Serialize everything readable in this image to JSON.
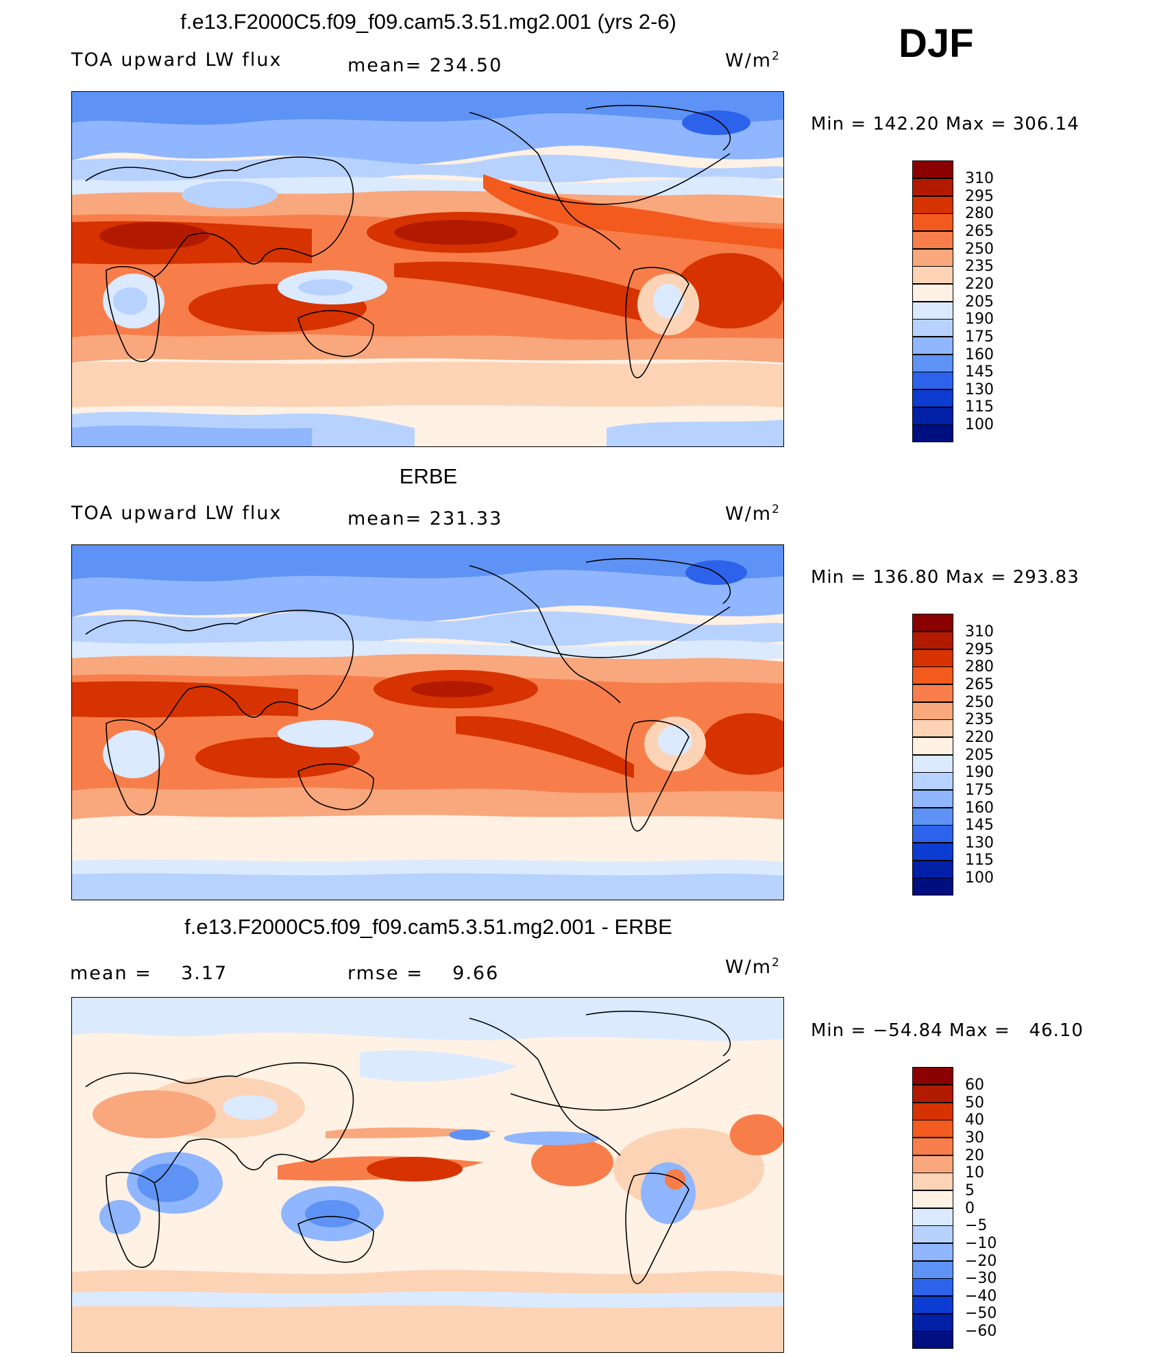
{
  "season": "DJF",
  "units_text": "W/m",
  "units_sup": "2",
  "panels": [
    {
      "title": "f.e13.F2000C5.f09_f09.cam5.3.51.mg2.001 (yrs 2-6)",
      "left_label": "TOA upward LW flux",
      "stat_label": "mean= 234.50",
      "minmax": "Min = 142.20 Max = 306.14"
    },
    {
      "title": "ERBE",
      "left_label": "TOA upward LW flux",
      "stat_label": "mean= 231.33",
      "minmax": "Min = 136.80 Max = 293.83"
    },
    {
      "title": "f.e13.F2000C5.f09_f09.cam5.3.51.mg2.001 - ERBE",
      "left_label": "mean =    3.17",
      "stat_label": "rmse =    9.66",
      "minmax": "Min = −54.84 Max =   46.10"
    }
  ],
  "chart_data": [
    {
      "type": "heatmap",
      "title": "f.e13.F2000C5.f09_f09.cam5.3.51.mg2.001 (yrs 2-6)",
      "subtitle": "TOA upward LW flux",
      "units": "W/m2",
      "mean": 234.5,
      "min": 142.2,
      "max": 306.14,
      "colorbar_levels": [
        310,
        295,
        280,
        265,
        250,
        235,
        220,
        205,
        190,
        175,
        160,
        145,
        130,
        115,
        100
      ],
      "colors": [
        "#8b0000",
        "#b21a00",
        "#d63300",
        "#f25a1e",
        "#f77e4a",
        "#f9a77d",
        "#fdd3b6",
        "#fff1e4",
        "#dbeaff",
        "#b8d2ff",
        "#8fb6ff",
        "#5e93f5",
        "#2d63ea",
        "#0c3cd1",
        "#0020a8",
        "#000f80"
      ]
    },
    {
      "type": "heatmap",
      "title": "ERBE",
      "subtitle": "TOA upward LW flux",
      "units": "W/m2",
      "mean": 231.33,
      "min": 136.8,
      "max": 293.83,
      "colorbar_levels": [
        310,
        295,
        280,
        265,
        250,
        235,
        220,
        205,
        190,
        175,
        160,
        145,
        130,
        115,
        100
      ],
      "colors": [
        "#8b0000",
        "#b21a00",
        "#d63300",
        "#f25a1e",
        "#f77e4a",
        "#f9a77d",
        "#fdd3b6",
        "#fff1e4",
        "#dbeaff",
        "#b8d2ff",
        "#8fb6ff",
        "#5e93f5",
        "#2d63ea",
        "#0c3cd1",
        "#0020a8",
        "#000f80"
      ]
    },
    {
      "type": "heatmap",
      "title": "f.e13.F2000C5.f09_f09.cam5.3.51.mg2.001 - ERBE",
      "units": "W/m2",
      "mean": 3.17,
      "rmse": 9.66,
      "min": -54.84,
      "max": 46.1,
      "colorbar_levels": [
        "60",
        "50",
        "40",
        "30",
        "20",
        "10",
        "5",
        "0",
        "−5",
        "−10",
        "−20",
        "−30",
        "−40",
        "−50",
        "−60"
      ],
      "colors": [
        "#8b0000",
        "#b21a00",
        "#d63300",
        "#f25a1e",
        "#f77e4a",
        "#f9a77d",
        "#fdd3b6",
        "#fff1e4",
        "#dbeaff",
        "#b8d2ff",
        "#8fb6ff",
        "#5e93f5",
        "#2d63ea",
        "#0c3cd1",
        "#0020a8",
        "#000f80"
      ]
    }
  ]
}
